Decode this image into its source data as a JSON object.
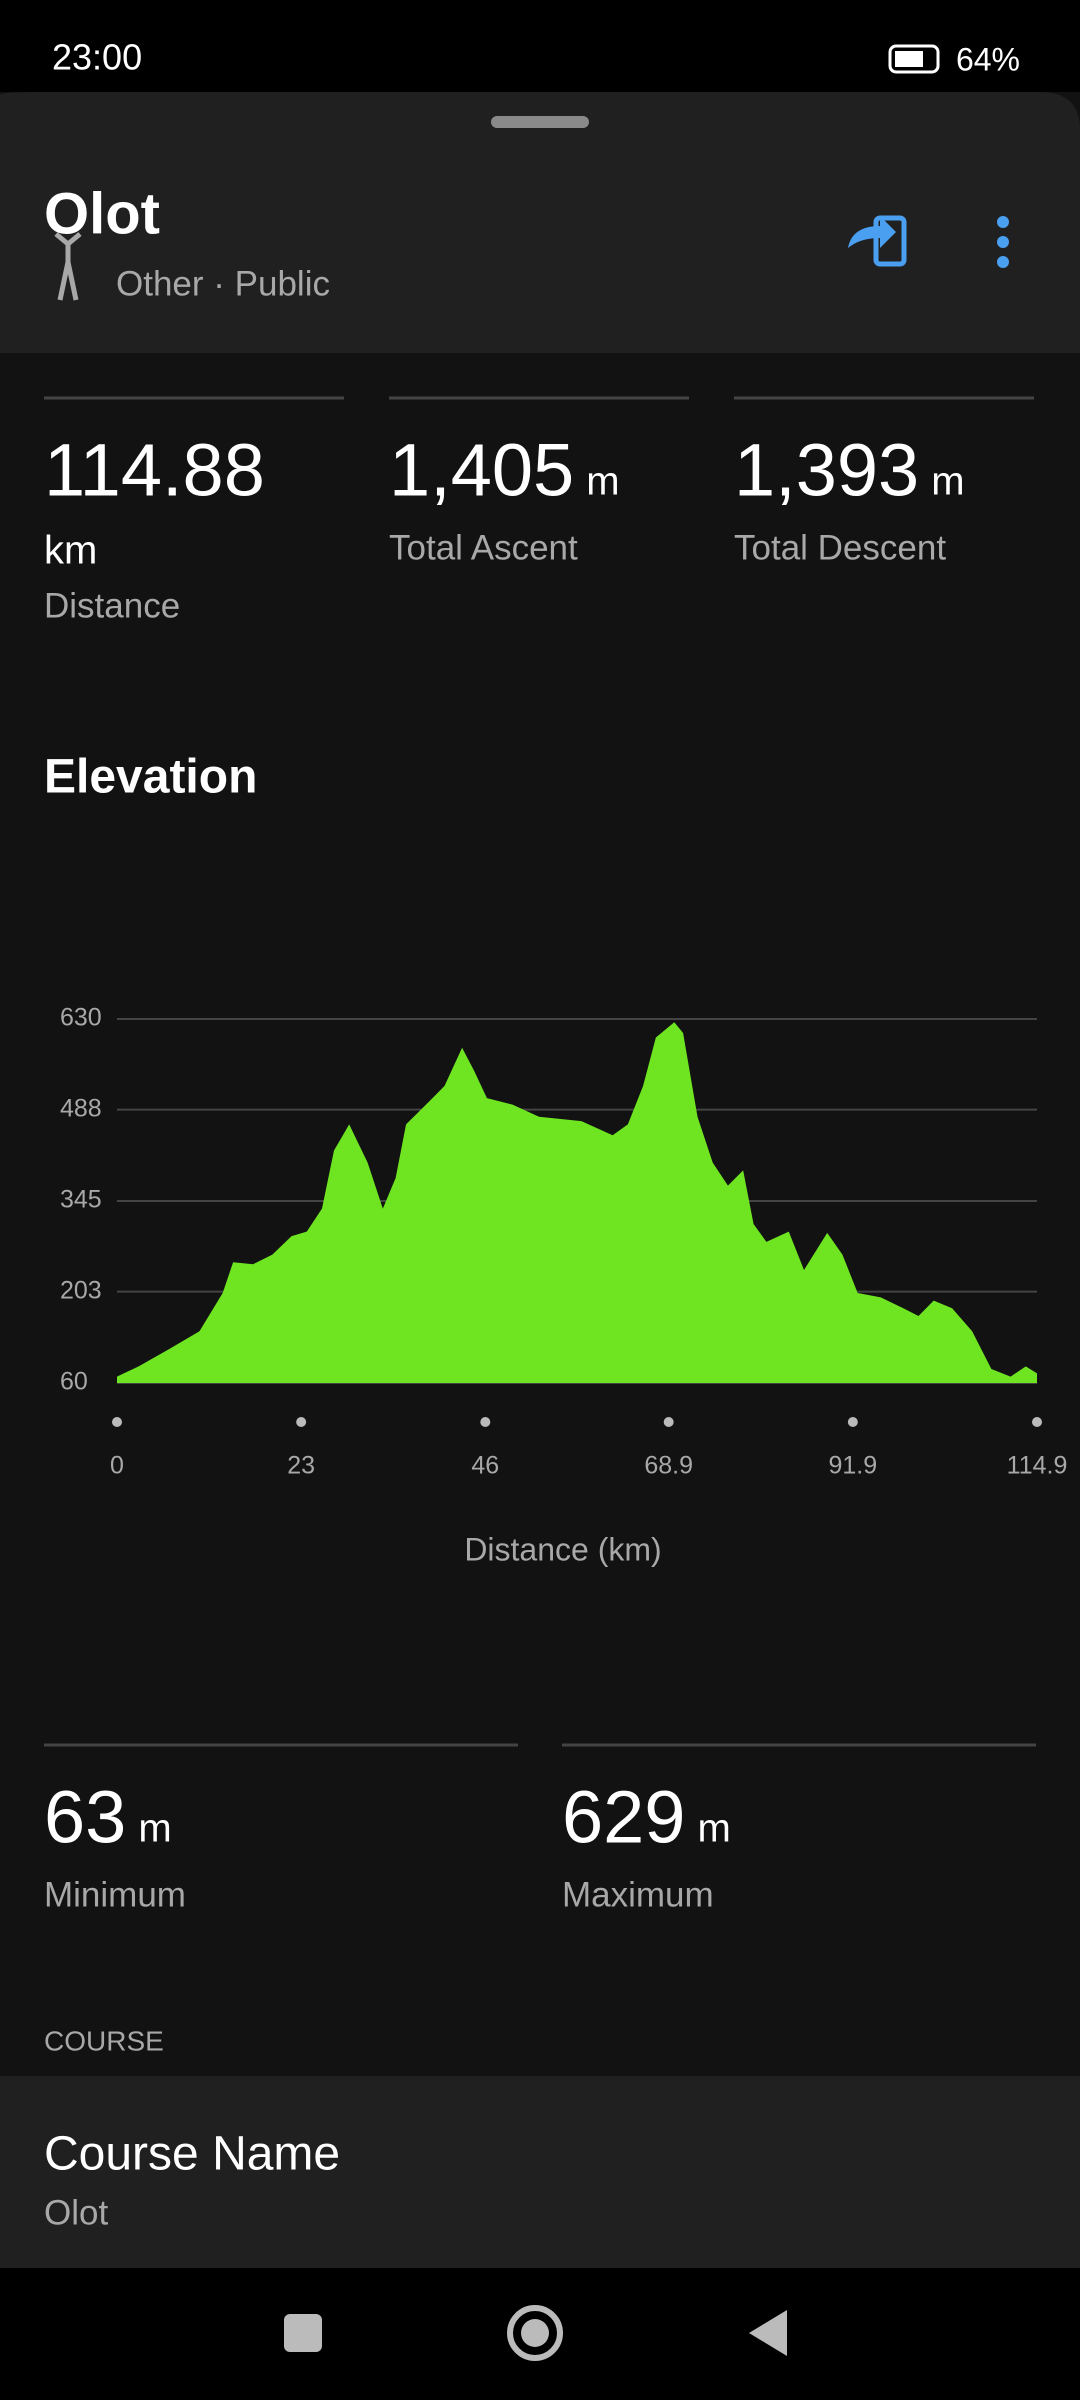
{
  "status_bar": {
    "time": "23:00",
    "battery": "64%"
  },
  "header": {
    "title": "Olot",
    "subtitle": "Other · Public"
  },
  "stats": [
    {
      "value": "114.88",
      "unit": "km",
      "label": "Distance"
    },
    {
      "value": "1,405",
      "unit": "m",
      "label": "Total Ascent"
    },
    {
      "value": "1,393",
      "unit": "m",
      "label": "Total Descent"
    }
  ],
  "chart_data": {
    "type": "area",
    "title": "Elevation",
    "x_label": "Distance (km)",
    "color": "#6fe522",
    "x": [
      0,
      2.7,
      6.5,
      10.3,
      13.2,
      14.5,
      17,
      19.4,
      21.8,
      23.7,
      25.6,
      27.1,
      29,
      31.3,
      33.2,
      34.8,
      36.1,
      39,
      40.9,
      43.1,
      44.6,
      46.2,
      49.4,
      52.7,
      58,
      61.9,
      63.8,
      65.7,
      67.3,
      69.6,
      70.7,
      72.5,
      74.4,
      76.3,
      78.2,
      79.5,
      81.1,
      83.9,
      85.8,
      88.7,
      90.6,
      92.5,
      95.4,
      98.2,
      100.1,
      102,
      104.3,
      106.8,
      109.2,
      111.6,
      113.5,
      114.9
    ],
    "values": [
      70,
      86,
      113,
      141,
      201,
      249,
      246,
      261,
      290,
      297,
      333,
      424,
      465,
      405,
      333,
      381,
      465,
      501,
      525,
      585,
      549,
      506,
      496,
      477,
      470,
      448,
      465,
      525,
      601,
      625,
      608,
      477,
      405,
      369,
      393,
      309,
      281,
      297,
      237,
      295,
      261,
      201,
      194,
      177,
      165,
      189,
      177,
      141,
      82,
      70,
      86,
      75
    ],
    "xlim": [
      0,
      114.9
    ],
    "xticks": [
      0,
      23,
      46,
      68.9,
      91.9,
      114.9
    ],
    "ylim": [
      60,
      630
    ],
    "yticks": [
      60,
      203,
      345,
      488,
      630
    ],
    "grid": true
  },
  "elevation_stats": [
    {
      "value": "63",
      "unit": "m",
      "label": "Minimum"
    },
    {
      "value": "629",
      "unit": "m",
      "label": "Maximum"
    }
  ],
  "course": {
    "section": "COURSE",
    "label": "Course Name",
    "value": "Olot"
  }
}
